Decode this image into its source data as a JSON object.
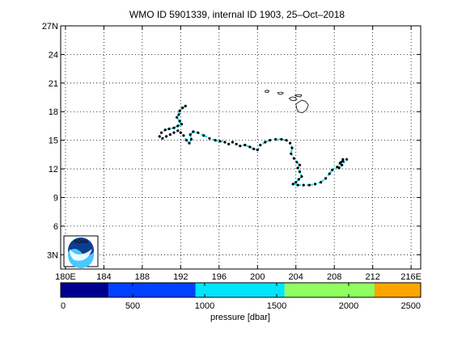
{
  "title": "WMO ID 5901339, internal ID 1903, 25–Oct–2018",
  "map": {
    "lat_ticks": [
      "27N",
      "24",
      "21",
      "18",
      "15",
      "12",
      "9",
      "6",
      "3N"
    ],
    "lon_ticks": [
      "180E",
      "184",
      "188",
      "192",
      "196",
      "200",
      "204",
      "208",
      "212",
      "216E"
    ],
    "lat_range": [
      1.5,
      27
    ],
    "lon_range": [
      179.5,
      217
    ],
    "grid": true,
    "islands_color": "#000000",
    "track_line_color": "#00e5ff",
    "track_point_color": "#000000",
    "islands": [
      [
        [
          200.8,
          20.2
        ],
        [
          201.0,
          20.25
        ],
        [
          201.2,
          20.2
        ],
        [
          201.1,
          20.0
        ],
        [
          200.8,
          20.05
        ]
      ],
      [
        [
          202.1,
          20.0
        ],
        [
          202.5,
          20.05
        ],
        [
          202.7,
          19.95
        ],
        [
          202.5,
          19.8
        ],
        [
          202.2,
          19.85
        ]
      ],
      [
        [
          203.3,
          19.4
        ],
        [
          203.6,
          19.55
        ],
        [
          203.9,
          19.5
        ],
        [
          204.1,
          19.3
        ],
        [
          203.8,
          19.15
        ],
        [
          203.5,
          19.2
        ]
      ],
      [
        [
          203.9,
          19.7
        ],
        [
          204.3,
          19.8
        ],
        [
          204.6,
          19.75
        ],
        [
          204.5,
          19.55
        ],
        [
          204.1,
          19.6
        ]
      ],
      [
        [
          204.0,
          18.8
        ],
        [
          204.3,
          19.0
        ],
        [
          204.6,
          19.2
        ],
        [
          205.0,
          19.1
        ],
        [
          205.3,
          18.7
        ],
        [
          205.1,
          18.2
        ],
        [
          204.7,
          17.9
        ],
        [
          204.3,
          17.95
        ],
        [
          204.1,
          18.3
        ]
      ]
    ],
    "track": [
      [
        192.5,
        18.6
      ],
      [
        192.2,
        18.4
      ],
      [
        191.9,
        18.1
      ],
      [
        191.8,
        17.7
      ],
      [
        191.6,
        17.4
      ],
      [
        191.9,
        17.0
      ],
      [
        192.1,
        16.7
      ],
      [
        191.7,
        16.5
      ],
      [
        191.3,
        16.3
      ],
      [
        190.8,
        16.2
      ],
      [
        190.4,
        16.1
      ],
      [
        190.0,
        15.8
      ],
      [
        189.8,
        15.4
      ],
      [
        190.1,
        15.2
      ],
      [
        190.5,
        15.4
      ],
      [
        190.9,
        15.6
      ],
      [
        191.3,
        15.8
      ],
      [
        191.7,
        16.0
      ],
      [
        192.0,
        15.8
      ],
      [
        192.3,
        15.5
      ],
      [
        192.6,
        15.0
      ],
      [
        192.9,
        14.7
      ],
      [
        193.1,
        15.1
      ],
      [
        193.0,
        15.6
      ],
      [
        193.3,
        15.9
      ],
      [
        193.8,
        15.8
      ],
      [
        194.4,
        15.5
      ],
      [
        195.0,
        15.2
      ],
      [
        195.6,
        15.0
      ],
      [
        196.1,
        14.9
      ],
      [
        196.6,
        14.8
      ],
      [
        197.0,
        14.6
      ],
      [
        197.4,
        14.8
      ],
      [
        197.8,
        14.6
      ],
      [
        198.2,
        14.4
      ],
      [
        198.7,
        14.5
      ],
      [
        199.2,
        14.3
      ],
      [
        199.6,
        14.1
      ],
      [
        200.0,
        14.0
      ],
      [
        200.3,
        14.5
      ],
      [
        200.8,
        14.8
      ],
      [
        201.3,
        15.0
      ],
      [
        201.9,
        15.1
      ],
      [
        202.5,
        15.1
      ],
      [
        203.0,
        15.0
      ],
      [
        203.4,
        14.7
      ],
      [
        203.6,
        14.2
      ],
      [
        203.5,
        13.6
      ],
      [
        203.8,
        13.1
      ],
      [
        204.1,
        12.7
      ],
      [
        204.4,
        12.4
      ],
      [
        204.2,
        12.1
      ],
      [
        204.4,
        11.7
      ],
      [
        204.6,
        11.2
      ],
      [
        204.3,
        10.9
      ],
      [
        204.0,
        10.6
      ],
      [
        203.7,
        10.4
      ],
      [
        204.2,
        10.3
      ],
      [
        204.8,
        10.3
      ],
      [
        205.4,
        10.3
      ],
      [
        206.0,
        10.4
      ],
      [
        206.6,
        10.6
      ],
      [
        207.1,
        11.0
      ],
      [
        207.5,
        11.5
      ],
      [
        207.8,
        11.9
      ],
      [
        208.3,
        12.2
      ],
      [
        208.6,
        12.6
      ],
      [
        208.9,
        12.8
      ],
      [
        209.3,
        13.0
      ],
      [
        208.8,
        12.4
      ],
      [
        208.5,
        12.1
      ],
      [
        208.7,
        12.7
      ],
      [
        208.9,
        13.0
      ]
    ]
  },
  "colorbar": {
    "label": "pressure [dbar]",
    "ticks": [
      "0",
      "500",
      "1000",
      "1500",
      "2000",
      "2500"
    ],
    "range": [
      0,
      2500
    ],
    "bands": [
      {
        "from": 0,
        "to": 333,
        "color": "#00008f"
      },
      {
        "from": 333,
        "to": 937,
        "color": "#0040ff"
      },
      {
        "from": 937,
        "to": 1555,
        "color": "#00e5ff"
      },
      {
        "from": 1555,
        "to": 2180,
        "color": "#8fff5f"
      },
      {
        "from": 2180,
        "to": 2500,
        "color": "#ffa500"
      }
    ]
  },
  "logo": {
    "name": "noaa-logo",
    "text": "NOAA"
  }
}
